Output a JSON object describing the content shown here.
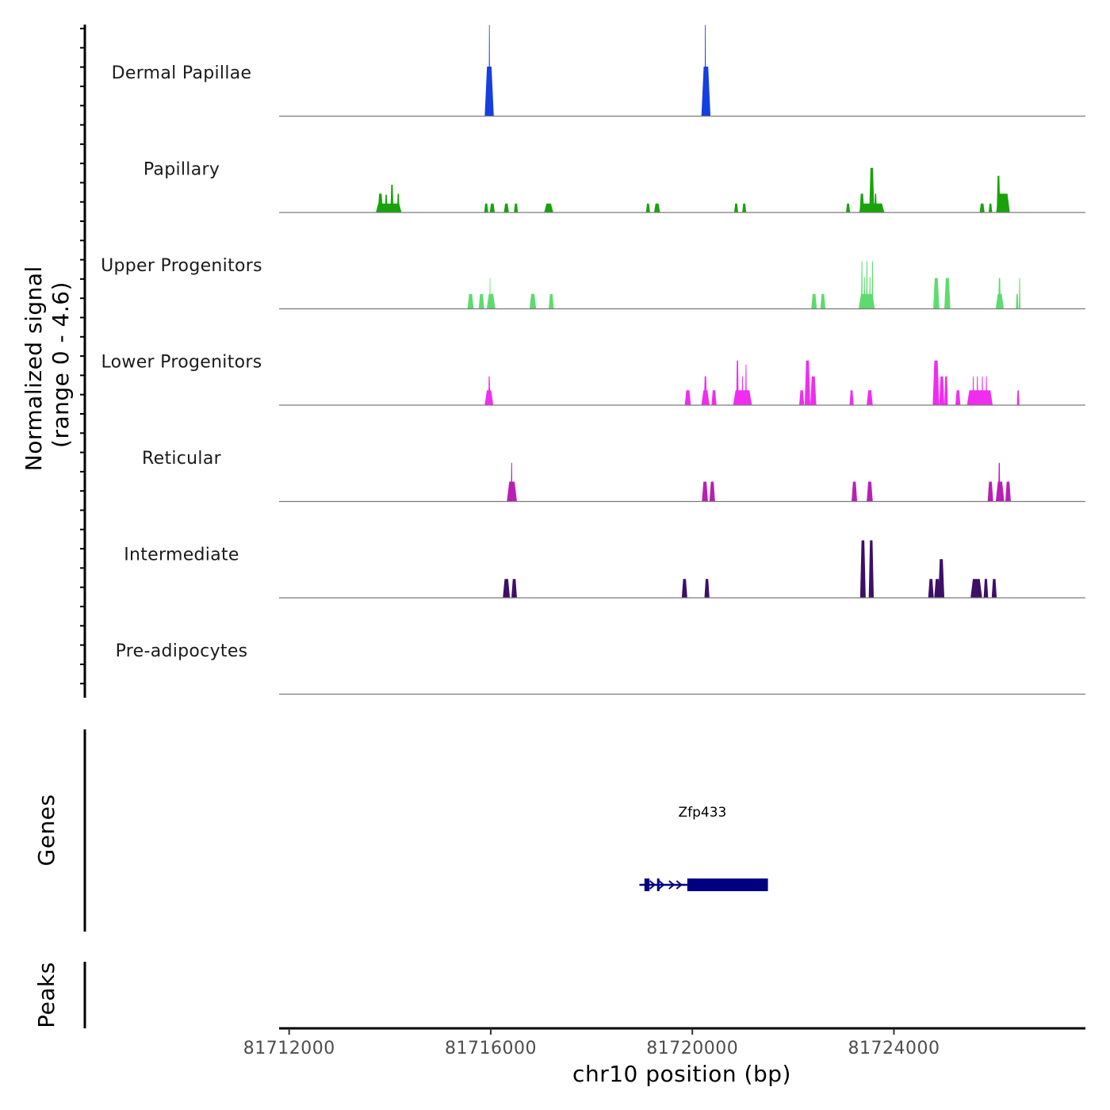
{
  "chart_data": {
    "type": "area",
    "title": "",
    "chromosome": "chr10",
    "xlabel": "chr10 position (bp)",
    "ylabel_line1": "Normalized signal",
    "ylabel_line2": "(range 0 - 4.6)",
    "y_range": [
      0,
      4.6
    ],
    "xlim": [
      81711800,
      81727800
    ],
    "x_ticks": [
      81712000,
      81716000,
      81720000,
      81724000
    ],
    "x_tick_labels": [
      "81712000",
      "81716000",
      "81720000",
      "81724000"
    ],
    "genes_label": "Genes",
    "peaks_label": "Peaks",
    "gene": {
      "name": "Zfp433",
      "start": 81718950,
      "end": 81721500,
      "strand": "+",
      "color": "#000080",
      "exons": [
        [
          81719050,
          81719150
        ],
        [
          81719300,
          81719320
        ],
        [
          81719900,
          81721500
        ]
      ]
    },
    "series": [
      {
        "name": "Dermal Papillae",
        "color": "#1540e0",
        "peaks": [
          {
            "start": 81715880,
            "end": 81716060,
            "height": 2.5
          },
          {
            "start": 81715960,
            "end": 81715985,
            "height": 4.6
          },
          {
            "start": 81720180,
            "end": 81720360,
            "height": 2.5
          },
          {
            "start": 81720245,
            "end": 81720270,
            "height": 4.6
          }
        ]
      },
      {
        "name": "Papillary",
        "color": "#18a30a",
        "peaks": [
          {
            "start": 81713720,
            "end": 81714230,
            "height": 0.45
          },
          {
            "start": 81713760,
            "end": 81713860,
            "height": 0.95
          },
          {
            "start": 81713900,
            "end": 81713950,
            "height": 0.9
          },
          {
            "start": 81714010,
            "end": 81714070,
            "height": 1.4
          },
          {
            "start": 81714140,
            "end": 81714190,
            "height": 0.95
          },
          {
            "start": 81715870,
            "end": 81715950,
            "height": 0.45
          },
          {
            "start": 81715980,
            "end": 81716080,
            "height": 0.45
          },
          {
            "start": 81716260,
            "end": 81716360,
            "height": 0.45
          },
          {
            "start": 81716460,
            "end": 81716540,
            "height": 0.45
          },
          {
            "start": 81717060,
            "end": 81717240,
            "height": 0.45
          },
          {
            "start": 81719080,
            "end": 81719160,
            "height": 0.45
          },
          {
            "start": 81719240,
            "end": 81719360,
            "height": 0.45
          },
          {
            "start": 81720830,
            "end": 81720910,
            "height": 0.45
          },
          {
            "start": 81720990,
            "end": 81721070,
            "height": 0.45
          },
          {
            "start": 81723050,
            "end": 81723130,
            "height": 0.45
          },
          {
            "start": 81723310,
            "end": 81723810,
            "height": 0.45
          },
          {
            "start": 81723320,
            "end": 81723410,
            "height": 0.95
          },
          {
            "start": 81723510,
            "end": 81723610,
            "height": 2.25
          },
          {
            "start": 81723610,
            "end": 81723660,
            "height": 0.95
          },
          {
            "start": 81723700,
            "end": 81723760,
            "height": 0.45
          },
          {
            "start": 81725700,
            "end": 81725800,
            "height": 0.45
          },
          {
            "start": 81725880,
            "end": 81725950,
            "height": 0.45
          },
          {
            "start": 81726030,
            "end": 81726300,
            "height": 0.95
          },
          {
            "start": 81726040,
            "end": 81726110,
            "height": 1.85
          }
        ]
      },
      {
        "name": "Upper Progenitors",
        "color": "#5edb6e",
        "peaks": [
          {
            "start": 81715540,
            "end": 81715660,
            "height": 0.75
          },
          {
            "start": 81715760,
            "end": 81715870,
            "height": 0.75
          },
          {
            "start": 81715920,
            "end": 81716090,
            "height": 0.75
          },
          {
            "start": 81715975,
            "end": 81715995,
            "height": 1.55
          },
          {
            "start": 81716770,
            "end": 81716900,
            "height": 0.75
          },
          {
            "start": 81717150,
            "end": 81717250,
            "height": 0.75
          },
          {
            "start": 81722360,
            "end": 81722470,
            "height": 0.75
          },
          {
            "start": 81722540,
            "end": 81722640,
            "height": 0.75
          },
          {
            "start": 81723300,
            "end": 81723620,
            "height": 0.75
          },
          {
            "start": 81723350,
            "end": 81723380,
            "height": 2.4
          },
          {
            "start": 81723400,
            "end": 81723430,
            "height": 1.6
          },
          {
            "start": 81723450,
            "end": 81723480,
            "height": 2.4
          },
          {
            "start": 81723510,
            "end": 81723540,
            "height": 1.6
          },
          {
            "start": 81723560,
            "end": 81723590,
            "height": 2.4
          },
          {
            "start": 81724780,
            "end": 81724900,
            "height": 1.55
          },
          {
            "start": 81725000,
            "end": 81725120,
            "height": 1.55
          },
          {
            "start": 81726020,
            "end": 81726180,
            "height": 0.75
          },
          {
            "start": 81726070,
            "end": 81726120,
            "height": 1.55
          },
          {
            "start": 81726420,
            "end": 81726470,
            "height": 0.75
          },
          {
            "start": 81726480,
            "end": 81726510,
            "height": 1.55
          }
        ]
      },
      {
        "name": "Lower Progenitors",
        "color": "#f02cf0",
        "peaks": [
          {
            "start": 81715880,
            "end": 81716050,
            "height": 0.75
          },
          {
            "start": 81715950,
            "end": 81715990,
            "height": 1.45
          },
          {
            "start": 81719850,
            "end": 81719970,
            "height": 0.75
          },
          {
            "start": 81720180,
            "end": 81720340,
            "height": 0.75
          },
          {
            "start": 81720230,
            "end": 81720290,
            "height": 1.45
          },
          {
            "start": 81720380,
            "end": 81720480,
            "height": 0.75
          },
          {
            "start": 81720810,
            "end": 81721180,
            "height": 0.75
          },
          {
            "start": 81720870,
            "end": 81720920,
            "height": 2.25
          },
          {
            "start": 81720980,
            "end": 81721010,
            "height": 1.45
          },
          {
            "start": 81721050,
            "end": 81721080,
            "height": 2.05
          },
          {
            "start": 81722120,
            "end": 81722220,
            "height": 0.75
          },
          {
            "start": 81722230,
            "end": 81722340,
            "height": 2.25
          },
          {
            "start": 81722340,
            "end": 81722460,
            "height": 1.45
          },
          {
            "start": 81723120,
            "end": 81723200,
            "height": 0.75
          },
          {
            "start": 81723460,
            "end": 81723580,
            "height": 0.75
          },
          {
            "start": 81724770,
            "end": 81724900,
            "height": 2.25
          },
          {
            "start": 81724900,
            "end": 81725000,
            "height": 1.45
          },
          {
            "start": 81725000,
            "end": 81725070,
            "height": 1.45
          },
          {
            "start": 81725220,
            "end": 81725320,
            "height": 0.75
          },
          {
            "start": 81725450,
            "end": 81725960,
            "height": 0.75
          },
          {
            "start": 81725560,
            "end": 81725590,
            "height": 1.45
          },
          {
            "start": 81725640,
            "end": 81725670,
            "height": 1.45
          },
          {
            "start": 81725740,
            "end": 81725770,
            "height": 1.45
          },
          {
            "start": 81725820,
            "end": 81725850,
            "height": 1.45
          },
          {
            "start": 81726440,
            "end": 81726490,
            "height": 0.75
          }
        ]
      },
      {
        "name": "Reticular",
        "color": "#b81fb5",
        "peaks": [
          {
            "start": 81716320,
            "end": 81716520,
            "height": 1.0
          },
          {
            "start": 81716400,
            "end": 81716430,
            "height": 1.95
          },
          {
            "start": 81720190,
            "end": 81720310,
            "height": 1.0
          },
          {
            "start": 81720340,
            "end": 81720450,
            "height": 1.0
          },
          {
            "start": 81723160,
            "end": 81723270,
            "height": 1.0
          },
          {
            "start": 81723460,
            "end": 81723580,
            "height": 1.0
          },
          {
            "start": 81725860,
            "end": 81725970,
            "height": 1.0
          },
          {
            "start": 81726020,
            "end": 81726190,
            "height": 1.0
          },
          {
            "start": 81726070,
            "end": 81726110,
            "height": 1.95
          },
          {
            "start": 81726210,
            "end": 81726320,
            "height": 1.0
          }
        ]
      },
      {
        "name": "Intermediate",
        "color": "#3d0f66",
        "peaks": [
          {
            "start": 81716240,
            "end": 81716380,
            "height": 0.95
          },
          {
            "start": 81716410,
            "end": 81716520,
            "height": 0.95
          },
          {
            "start": 81719790,
            "end": 81719900,
            "height": 0.95
          },
          {
            "start": 81720240,
            "end": 81720340,
            "height": 0.95
          },
          {
            "start": 81723330,
            "end": 81723440,
            "height": 2.9
          },
          {
            "start": 81723500,
            "end": 81723600,
            "height": 2.9
          },
          {
            "start": 81724680,
            "end": 81724790,
            "height": 0.95
          },
          {
            "start": 81724800,
            "end": 81724920,
            "height": 0.95
          },
          {
            "start": 81724880,
            "end": 81725000,
            "height": 1.95
          },
          {
            "start": 81725520,
            "end": 81725750,
            "height": 0.95
          },
          {
            "start": 81725780,
            "end": 81725870,
            "height": 0.95
          },
          {
            "start": 81725940,
            "end": 81726040,
            "height": 0.95
          }
        ]
      },
      {
        "name": "Pre-adipocytes",
        "color": "#f0e442",
        "peaks": []
      }
    ]
  }
}
